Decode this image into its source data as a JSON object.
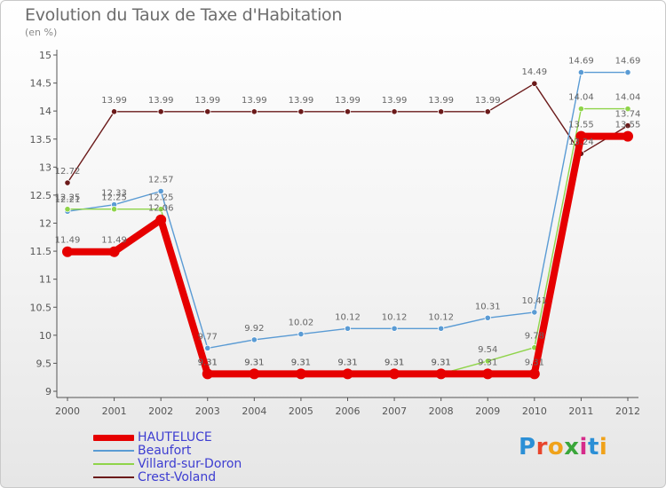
{
  "title": "Evolution du Taux de Taxe d'Habitation",
  "unit": "(en %)",
  "logo": {
    "text": "Proxiti",
    "colors": [
      "#2b8fd6",
      "#e8452c",
      "#f0a21a",
      "#3aa63a",
      "#d62b8a",
      "#2b8fd6",
      "#f0a21a"
    ]
  },
  "legend": [
    "HAUTELUCE",
    "Beaufort",
    "Villard-sur-Doron",
    "Crest-Voland"
  ],
  "chart_data": {
    "type": "line",
    "title": "Evolution du Taux de Taxe d'Habitation",
    "ylabel": "(en %)",
    "x": [
      "2000",
      "2001",
      "2002",
      "2003",
      "2004",
      "2005",
      "2006",
      "2007",
      "2008",
      "2009",
      "2010",
      "2011",
      "2012"
    ],
    "ylim": [
      9,
      15
    ],
    "yticks": [
      "9",
      "9.5",
      "10",
      "10.5",
      "11",
      "11.5",
      "12",
      "12.5",
      "13",
      "13.5",
      "14",
      "14.5",
      "15"
    ],
    "grid": false,
    "legend_position": "bottom-left",
    "series": [
      {
        "name": "Crest-Voland",
        "color": "#6b1a1a",
        "values": [
          12.72,
          13.99,
          13.99,
          13.99,
          13.99,
          13.99,
          13.99,
          13.99,
          13.99,
          13.99,
          14.49,
          13.24,
          13.74
        ],
        "labels": [
          "12.72",
          "13.99",
          "13.99",
          "13.99",
          "13.99",
          "13.99",
          "13.99",
          "13.99",
          "13.99",
          "13.99",
          "14.49",
          "13.24",
          "13.74"
        ]
      },
      {
        "name": "Beaufort",
        "color": "#5a9bd4",
        "values": [
          12.21,
          12.33,
          12.57,
          9.77,
          9.92,
          10.02,
          10.12,
          10.12,
          10.12,
          10.31,
          10.41,
          14.69,
          14.69
        ],
        "labels": [
          "12.21",
          "12.33",
          "12.57",
          "9.77",
          "9.92",
          "10.02",
          "10.12",
          "10.12",
          "10.12",
          "10.31",
          "10.41",
          "14.69",
          "14.69"
        ]
      },
      {
        "name": "Villard-sur-Doron",
        "color": "#8fd44a",
        "values": [
          12.25,
          12.25,
          12.25,
          9.31,
          9.31,
          9.31,
          9.31,
          9.31,
          9.31,
          9.54,
          9.78,
          14.04,
          14.04
        ],
        "labels": [
          "12.25",
          "12.25",
          "12.25",
          "9.31",
          "9.31",
          "9.31",
          "9.31",
          "9.31",
          "9.31",
          "9.54",
          "9.78",
          "14.04",
          "14.04"
        ]
      },
      {
        "name": "HAUTELUCE",
        "color": "#e60000",
        "values": [
          11.49,
          11.49,
          12.06,
          9.31,
          9.31,
          9.31,
          9.31,
          9.31,
          9.31,
          9.31,
          9.31,
          13.55,
          13.55
        ],
        "labels": [
          "11.49",
          "11.49",
          "12.06",
          "9.31",
          "9.31",
          "9.31",
          "9.31",
          "9.31",
          "9.31",
          "9.31",
          "9.31",
          "13.55",
          "13.55"
        ]
      }
    ]
  }
}
